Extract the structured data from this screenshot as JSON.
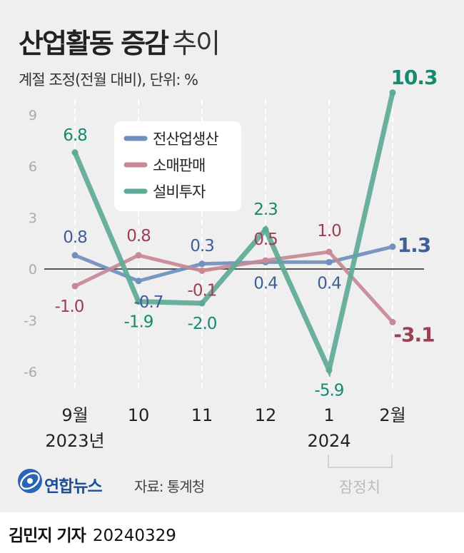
{
  "title": "산업활동 증감",
  "title_suffix": "추이",
  "subtitle": "계절 조정(전월 대비), 단위: %",
  "source": "자료: 통계청",
  "logo_text": "연합뉴스",
  "byline": {
    "name": "김민지 기자",
    "date": "20240329"
  },
  "colors": {
    "background": "#efefef",
    "zero_line": "#222222"
  },
  "chart_data": {
    "type": "line",
    "categories": [
      "9월",
      "10",
      "11",
      "12",
      "1",
      "2월"
    ],
    "year_labels": [
      "2023년",
      "",
      "",
      "",
      "2024",
      ""
    ],
    "ylim": [
      -7,
      10.5
    ],
    "yticks": [
      -6,
      -3,
      0,
      3,
      6,
      9
    ],
    "ytick_labels": [
      "-6",
      "-3",
      "0",
      "3",
      "6",
      "9"
    ],
    "legend": {
      "placement": "top-left"
    },
    "preliminary_label": "잠정치",
    "series": [
      {
        "name": "전산업생산",
        "color": "#6f8fbf",
        "label_color": "#3f5f95",
        "values": [
          0.8,
          -0.7,
          0.3,
          0.4,
          0.4,
          1.3
        ],
        "labels": [
          "0.8",
          "-0.7",
          "0.3",
          "0.4",
          "0.4",
          "1.3"
        ]
      },
      {
        "name": "소매판매",
        "color": "#c78995",
        "label_color": "#9b3f52",
        "values": [
          -1.0,
          0.8,
          -0.1,
          0.5,
          1.0,
          -3.1
        ],
        "labels": [
          "-1.0",
          "0.8",
          "-0.1",
          "0.5",
          "1.0",
          "-3.1"
        ]
      },
      {
        "name": "설비투자",
        "color": "#5faa97",
        "label_color": "#168a6e",
        "values": [
          6.8,
          -1.9,
          -2.0,
          2.3,
          -5.9,
          10.3
        ],
        "labels": [
          "6.8",
          "-1.9",
          "-2.0",
          "2.3",
          "-5.9",
          "10.3"
        ]
      }
    ]
  }
}
